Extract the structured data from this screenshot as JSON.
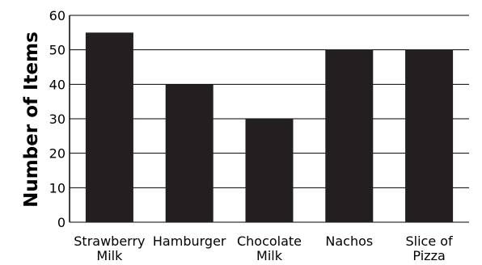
{
  "chart_data": {
    "type": "bar",
    "categories": [
      [
        "Strawberry",
        "Milk"
      ],
      [
        "Hamburger"
      ],
      [
        "Chocolate",
        "Milk"
      ],
      [
        "Nachos"
      ],
      [
        "Slice of",
        "Pizza"
      ]
    ],
    "values": [
      55,
      40,
      30,
      50,
      50
    ],
    "ylabel": "Number of Items",
    "xlabel": "",
    "title": "",
    "ylim": [
      0,
      60
    ],
    "yticks": [
      0,
      10,
      20,
      30,
      40,
      50,
      60
    ],
    "grid": "horizontal",
    "bar_color": "#231f20",
    "grid_color": "#000000"
  }
}
